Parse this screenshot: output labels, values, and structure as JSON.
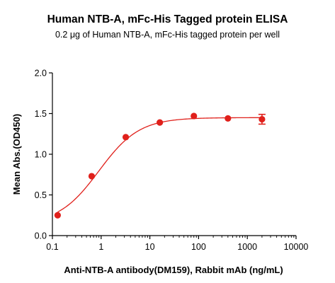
{
  "chart_data": {
    "type": "scatter",
    "title": "Human NTB-A, mFc-His Tagged protein ELISA",
    "subtitle_prefix": "0.2 ",
    "subtitle_unit": "μg",
    "subtitle_suffix": " of Human NTB-A, mFc-His tagged protein per well",
    "xlabel": "Anti-NTB-A antibody(DM159), Rabbit mAb (ng/mL)",
    "ylabel": "Mean Abs.(OD450)",
    "x_scale": "log",
    "xlim": [
      0.1,
      10000
    ],
    "ylim": [
      0,
      2.0
    ],
    "x_ticks": [
      0.1,
      1,
      10,
      100,
      1000,
      10000
    ],
    "x_tick_labels": [
      "0.1",
      "1",
      "10",
      "100",
      "1000",
      "10000"
    ],
    "y_ticks": [
      0,
      0.5,
      1.0,
      1.5,
      2.0
    ],
    "y_tick_labels": [
      "0.0",
      "0.5",
      "1.0",
      "1.5",
      "2.0"
    ],
    "grid": false,
    "series": [
      {
        "color": "#e0201b",
        "points": [
          {
            "x": 0.128,
            "y": 0.25,
            "err": 0
          },
          {
            "x": 0.64,
            "y": 0.73,
            "err": 0
          },
          {
            "x": 3.2,
            "y": 1.21,
            "err": 0
          },
          {
            "x": 16,
            "y": 1.39,
            "err": 0
          },
          {
            "x": 80,
            "y": 1.47,
            "err": 0
          },
          {
            "x": 400,
            "y": 1.44,
            "err": 0
          },
          {
            "x": 2000,
            "y": 1.43,
            "err": 0.06
          }
        ],
        "fit": {
          "bottom": 0.14,
          "top": 1.45,
          "ec50": 0.9,
          "hill": 1.05
        }
      }
    ]
  }
}
